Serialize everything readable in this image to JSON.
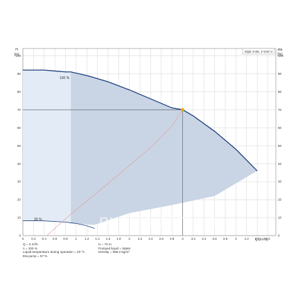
{
  "colors": {
    "curve": "#1f3f7f",
    "fill": "#c9d5e4",
    "fill_light": "#e3ecf6",
    "grid": "#d3d3d3",
    "efficiency": "#e2a0a0",
    "marker": "#f5b400",
    "axis_text": "#333333",
    "watermark": "#ffffff"
  },
  "chart_data": {
    "type": "line",
    "model_label": "SQE 3-65, 1*240 V",
    "y_left_unit_top": "H",
    "y_left_unit_bottom": "[m]",
    "y_right_unit_top": "eta",
    "y_right_unit_bottom": "[%]",
    "x_unit": "Q [m³/h]",
    "xlim": [
      0,
      4.75
    ],
    "ylim": [
      0,
      104
    ],
    "x_ticks": [
      0,
      0.2,
      0.4,
      0.6,
      0.8,
      1.0,
      1.2,
      1.4,
      1.6,
      1.8,
      2.0,
      2.2,
      2.4,
      2.6,
      2.8,
      3.0,
      3.2,
      3.4,
      3.6,
      3.8,
      4.0,
      4.2,
      4.4,
      4.6
    ],
    "x_tick_labels": [
      "0",
      "0.2",
      "0.4",
      "0.6",
      "0.8",
      "1",
      "1.2",
      "1.4",
      "1.6",
      "1.8",
      "2",
      "2.2",
      "2.4",
      "2.6",
      "2.8",
      "3",
      "3.2",
      "3.4",
      "3.6",
      "3.8",
      "4",
      "4.2",
      "4.4",
      "4.6"
    ],
    "y_ticks": [
      0,
      10,
      20,
      30,
      40,
      50,
      60,
      70,
      80,
      90,
      100
    ],
    "grid": true,
    "series": [
      {
        "name": "100 %",
        "x": [
          0,
          0.2,
          0.4,
          0.6,
          0.8,
          0.9,
          1.2,
          1.6,
          2.0,
          2.4,
          2.8,
          3.0,
          3.2,
          3.6,
          4.0,
          4.4
        ],
        "y": [
          92,
          92,
          92,
          91.5,
          91,
          91,
          89,
          85.5,
          81,
          76,
          71,
          70,
          66.5,
          58,
          48,
          36
        ]
      },
      {
        "name": "30 %",
        "x": [
          0,
          0.4,
          0.8,
          1.0,
          1.2,
          1.35
        ],
        "y": [
          8.3,
          8.2,
          7.5,
          6.8,
          5.5,
          4.0
        ]
      },
      {
        "name": "",
        "x": [
          0.45,
          0.9,
          1.4,
          2.0,
          2.4,
          2.8,
          3.0
        ],
        "y": [
          0,
          12,
          24,
          39,
          49,
          61,
          70
        ]
      }
    ],
    "efficiency_range_min_label": "30 %",
    "efficiency_range_max_label": "100 %",
    "duty_point": {
      "x": 3.0,
      "y": 70
    },
    "info_left": [
      "Q = 3 m³/h",
      "n = 100 %",
      "Liquid temperature during operation = 20 °C",
      "Eta pump = 57 %"
    ],
    "info_right": [
      "H = 70 m",
      "Pumped liquid = Water",
      "Density = 998.2 kg/m³"
    ],
    "watermark": "pumps.com.ua"
  }
}
